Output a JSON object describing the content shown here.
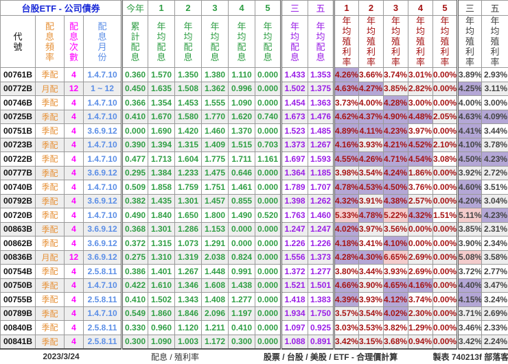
{
  "header": {
    "title": "台股ETF - 公司債券",
    "this_year": "今年",
    "years": [
      "1",
      "2",
      "3",
      "4",
      "5"
    ],
    "avg3": "三",
    "avg5": "五",
    "col_code": "代號",
    "col_freq": "配息頻率",
    "col_count": "配息次數",
    "col_months": "配息月份",
    "col_cum": "累計配息",
    "col_avg_div": "年均配息",
    "col_avg_yield": "年均殖利率"
  },
  "colors": {
    "highlight_over_4": "#b4a7d6",
    "highlight_over_5": "#f4cccc"
  },
  "rows": [
    {
      "code": "00761B",
      "freq": "季配",
      "count": "4",
      "months": "1.4.7.10",
      "div": [
        "0.360",
        "1.570",
        "1.350",
        "1.380",
        "1.110",
        "0.000",
        "1.433",
        "1.353"
      ],
      "yld": [
        "4.26%",
        "3.66%",
        "3.74%",
        "3.01%",
        "0.00%",
        "3.89%",
        "2.93%"
      ]
    },
    {
      "code": "00772B",
      "freq": "月配",
      "count": "12",
      "months": "1 ~ 12",
      "div": [
        "0.450",
        "1.635",
        "1.508",
        "1.362",
        "0.996",
        "0.000",
        "1.502",
        "1.375"
      ],
      "yld": [
        "4.63%",
        "4.27%",
        "3.85%",
        "2.82%",
        "0.00%",
        "4.25%",
        "3.11%"
      ]
    },
    {
      "code": "00746B",
      "freq": "季配",
      "count": "4",
      "months": "1.4.7.10",
      "div": [
        "0.366",
        "1.354",
        "1.453",
        "1.555",
        "1.090",
        "0.000",
        "1.454",
        "1.363"
      ],
      "yld": [
        "3.73%",
        "4.00%",
        "4.28%",
        "3.00%",
        "0.00%",
        "4.00%",
        "3.00%"
      ]
    },
    {
      "code": "00725B",
      "freq": "季配",
      "count": "4",
      "months": "1.4.7.10",
      "div": [
        "0.410",
        "1.670",
        "1.580",
        "1.770",
        "1.620",
        "0.740",
        "1.673",
        "1.476"
      ],
      "yld": [
        "4.62%",
        "4.37%",
        "4.90%",
        "4.48%",
        "2.05%",
        "4.63%",
        "4.09%"
      ]
    },
    {
      "code": "00751B",
      "freq": "季配",
      "count": "4",
      "months": "3.6.9.12",
      "div": [
        "0.000",
        "1.690",
        "1.420",
        "1.460",
        "1.370",
        "0.000",
        "1.523",
        "1.485"
      ],
      "yld": [
        "4.89%",
        "4.11%",
        "4.23%",
        "3.97%",
        "0.00%",
        "4.41%",
        "3.44%"
      ]
    },
    {
      "code": "00723B",
      "freq": "季配",
      "count": "4",
      "months": "1.4.7.10",
      "div": [
        "0.390",
        "1.394",
        "1.315",
        "1.409",
        "1.515",
        "0.703",
        "1.373",
        "1.267"
      ],
      "yld": [
        "4.16%",
        "3.93%",
        "4.21%",
        "4.52%",
        "2.10%",
        "4.10%",
        "3.78%"
      ]
    },
    {
      "code": "00722B",
      "freq": "季配",
      "count": "4",
      "months": "1.4.7.10",
      "div": [
        "0.477",
        "1.713",
        "1.604",
        "1.775",
        "1.711",
        "1.161",
        "1.697",
        "1.593"
      ],
      "yld": [
        "4.55%",
        "4.26%",
        "4.71%",
        "4.54%",
        "3.08%",
        "4.50%",
        "4.23%"
      ]
    },
    {
      "code": "00777B",
      "freq": "季配",
      "count": "4",
      "months": "3.6.9.12",
      "div": [
        "0.295",
        "1.384",
        "1.233",
        "1.475",
        "0.646",
        "0.000",
        "1.364",
        "1.185"
      ],
      "yld": [
        "3.98%",
        "3.54%",
        "4.24%",
        "1.86%",
        "0.00%",
        "3.92%",
        "2.72%"
      ]
    },
    {
      "code": "00740B",
      "freq": "季配",
      "count": "4",
      "months": "1.4.7.10",
      "div": [
        "0.509",
        "1.858",
        "1.759",
        "1.751",
        "1.461",
        "0.000",
        "1.789",
        "1.707"
      ],
      "yld": [
        "4.78%",
        "4.53%",
        "4.50%",
        "3.76%",
        "0.00%",
        "4.60%",
        "3.51%"
      ]
    },
    {
      "code": "00792B",
      "freq": "季配",
      "count": "4",
      "months": "3.6.9.12",
      "div": [
        "0.382",
        "1.435",
        "1.301",
        "1.457",
        "0.855",
        "0.000",
        "1.398",
        "1.262"
      ],
      "yld": [
        "4.32%",
        "3.91%",
        "4.38%",
        "2.57%",
        "0.00%",
        "4.20%",
        "3.04%"
      ]
    },
    {
      "code": "00720B",
      "freq": "季配",
      "count": "4",
      "months": "1.4.7.10",
      "div": [
        "0.490",
        "1.840",
        "1.650",
        "1.800",
        "1.490",
        "0.520",
        "1.763",
        "1.460"
      ],
      "yld": [
        "5.33%",
        "4.78%",
        "5.22%",
        "4.32%",
        "1.51%",
        "5.11%",
        "4.23%"
      ]
    },
    {
      "code": "00863B",
      "freq": "季配",
      "count": "4",
      "months": "3.6.9.12",
      "div": [
        "0.368",
        "1.301",
        "1.286",
        "1.153",
        "0.000",
        "0.000",
        "1.247",
        "1.247"
      ],
      "yld": [
        "4.02%",
        "3.97%",
        "3.56%",
        "0.00%",
        "0.00%",
        "3.85%",
        "2.31%"
      ]
    },
    {
      "code": "00862B",
      "freq": "季配",
      "count": "4",
      "months": "3.6.9.12",
      "div": [
        "0.372",
        "1.315",
        "1.073",
        "1.291",
        "0.000",
        "0.000",
        "1.226",
        "1.226"
      ],
      "yld": [
        "4.18%",
        "3.41%",
        "4.10%",
        "0.00%",
        "0.00%",
        "3.90%",
        "2.34%"
      ]
    },
    {
      "code": "00836B",
      "freq": "月配",
      "count": "12",
      "months": "3.6.9.12",
      "div": [
        "0.275",
        "1.310",
        "1.319",
        "2.038",
        "0.824",
        "0.000",
        "1.556",
        "1.373"
      ],
      "yld": [
        "4.28%",
        "4.30%",
        "6.65%",
        "2.69%",
        "0.00%",
        "5.08%",
        "3.58%"
      ]
    },
    {
      "code": "00754B",
      "freq": "季配",
      "count": "4",
      "months": "2.5.8.11",
      "div": [
        "0.386",
        "1.401",
        "1.267",
        "1.448",
        "0.991",
        "0.000",
        "1.372",
        "1.277"
      ],
      "yld": [
        "3.80%",
        "3.44%",
        "3.93%",
        "2.69%",
        "0.00%",
        "3.72%",
        "2.77%"
      ]
    },
    {
      "code": "00750B",
      "freq": "季配",
      "count": "4",
      "months": "1.4.7.10",
      "div": [
        "0.422",
        "1.610",
        "1.346",
        "1.608",
        "1.438",
        "0.000",
        "1.521",
        "1.501"
      ],
      "yld": [
        "4.66%",
        "3.90%",
        "4.65%",
        "4.16%",
        "0.00%",
        "4.40%",
        "3.47%"
      ]
    },
    {
      "code": "00755B",
      "freq": "季配",
      "count": "4",
      "months": "2.5.8.11",
      "div": [
        "0.410",
        "1.502",
        "1.343",
        "1.408",
        "1.277",
        "0.000",
        "1.418",
        "1.383"
      ],
      "yld": [
        "4.39%",
        "3.93%",
        "4.12%",
        "3.74%",
        "0.00%",
        "4.15%",
        "3.24%"
      ]
    },
    {
      "code": "00789B",
      "freq": "季配",
      "count": "4",
      "months": "1.4.7.10",
      "div": [
        "0.549",
        "1.860",
        "1.846",
        "2.096",
        "1.197",
        "0.000",
        "1.934",
        "1.750"
      ],
      "yld": [
        "3.57%",
        "3.54%",
        "4.02%",
        "2.30%",
        "0.00%",
        "3.71%",
        "2.69%"
      ]
    },
    {
      "code": "00840B",
      "freq": "季配",
      "count": "4",
      "months": "2.5.8.11",
      "div": [
        "0.330",
        "0.960",
        "1.120",
        "1.211",
        "0.410",
        "0.000",
        "1.097",
        "0.925"
      ],
      "yld": [
        "3.03%",
        "3.53%",
        "3.82%",
        "1.29%",
        "0.00%",
        "3.46%",
        "2.33%"
      ]
    },
    {
      "code": "00841B",
      "freq": "季配",
      "count": "4",
      "months": "2.5.8.11",
      "div": [
        "0.300",
        "1.090",
        "1.003",
        "1.172",
        "0.300",
        "0.000",
        "1.088",
        "0.891"
      ],
      "yld": [
        "3.42%",
        "3.15%",
        "3.68%",
        "0.94%",
        "0.00%",
        "3.42%",
        "2.24%"
      ]
    }
  ],
  "footer": {
    "date": "2023/3/24",
    "link1": "配息 / 殖利率",
    "link2": "股票 / 台股 / 美股 / ETF - 合理價計算",
    "credit": "製表 740213f 部落客"
  }
}
